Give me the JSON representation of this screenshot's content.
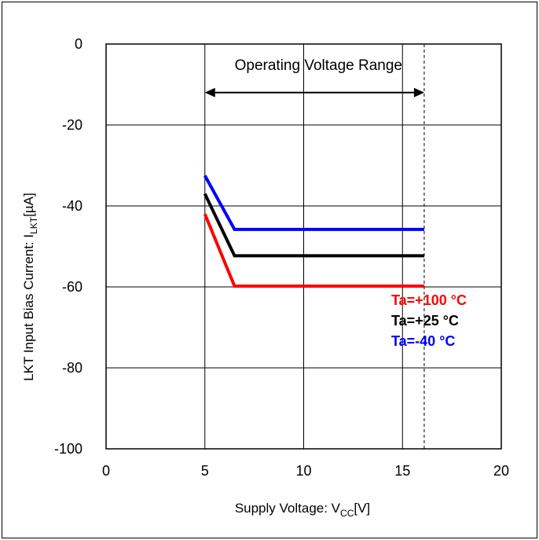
{
  "chart_data": {
    "type": "line",
    "xlabel_main": "Supply Voltage: V",
    "xlabel_sub": "CC",
    "xlabel_tail": "[V]",
    "ylabel_main": "LKT Input Bias Current: I",
    "ylabel_sub": "LKT",
    "ylabel_tail": "[µA]",
    "xlim": [
      0,
      20
    ],
    "ylim": [
      -100,
      0
    ],
    "xticks": [
      0,
      5,
      10,
      15,
      20
    ],
    "yticks": [
      0,
      -20,
      -40,
      -60,
      -80,
      -100
    ],
    "xtick_labels": [
      "0",
      "5",
      "10",
      "15",
      "20"
    ],
    "ytick_labels": [
      "0",
      "-20",
      "-40",
      "-60",
      "-80",
      "-100"
    ],
    "grid": true,
    "annotation": {
      "text": "Operating Voltage Range",
      "x_range": [
        5,
        16.1
      ],
      "y": -12
    },
    "vline_dashed_x": 16.1,
    "series": [
      {
        "name": "Ta=-40 °C",
        "color": "#0000ff",
        "x": [
          5,
          6.5,
          16.1
        ],
        "y": [
          -32.5,
          -45.8,
          -45.8
        ]
      },
      {
        "name": "Ta=+25 °C",
        "color": "#000000",
        "x": [
          5,
          6.5,
          16.1
        ],
        "y": [
          -37,
          -52.3,
          -52.3
        ]
      },
      {
        "name": "Ta=+100 °C",
        "color": "#ff0000",
        "x": [
          5,
          6.5,
          16.1
        ],
        "y": [
          -42,
          -59.8,
          -59.8
        ]
      }
    ],
    "legend": [
      {
        "text": "Ta=+100 °C",
        "color": "#ff0000"
      },
      {
        "text": "Ta=+25 °C",
        "color": "#000000"
      },
      {
        "text": "Ta=-40 °C",
        "color": "#0000ff"
      }
    ]
  }
}
